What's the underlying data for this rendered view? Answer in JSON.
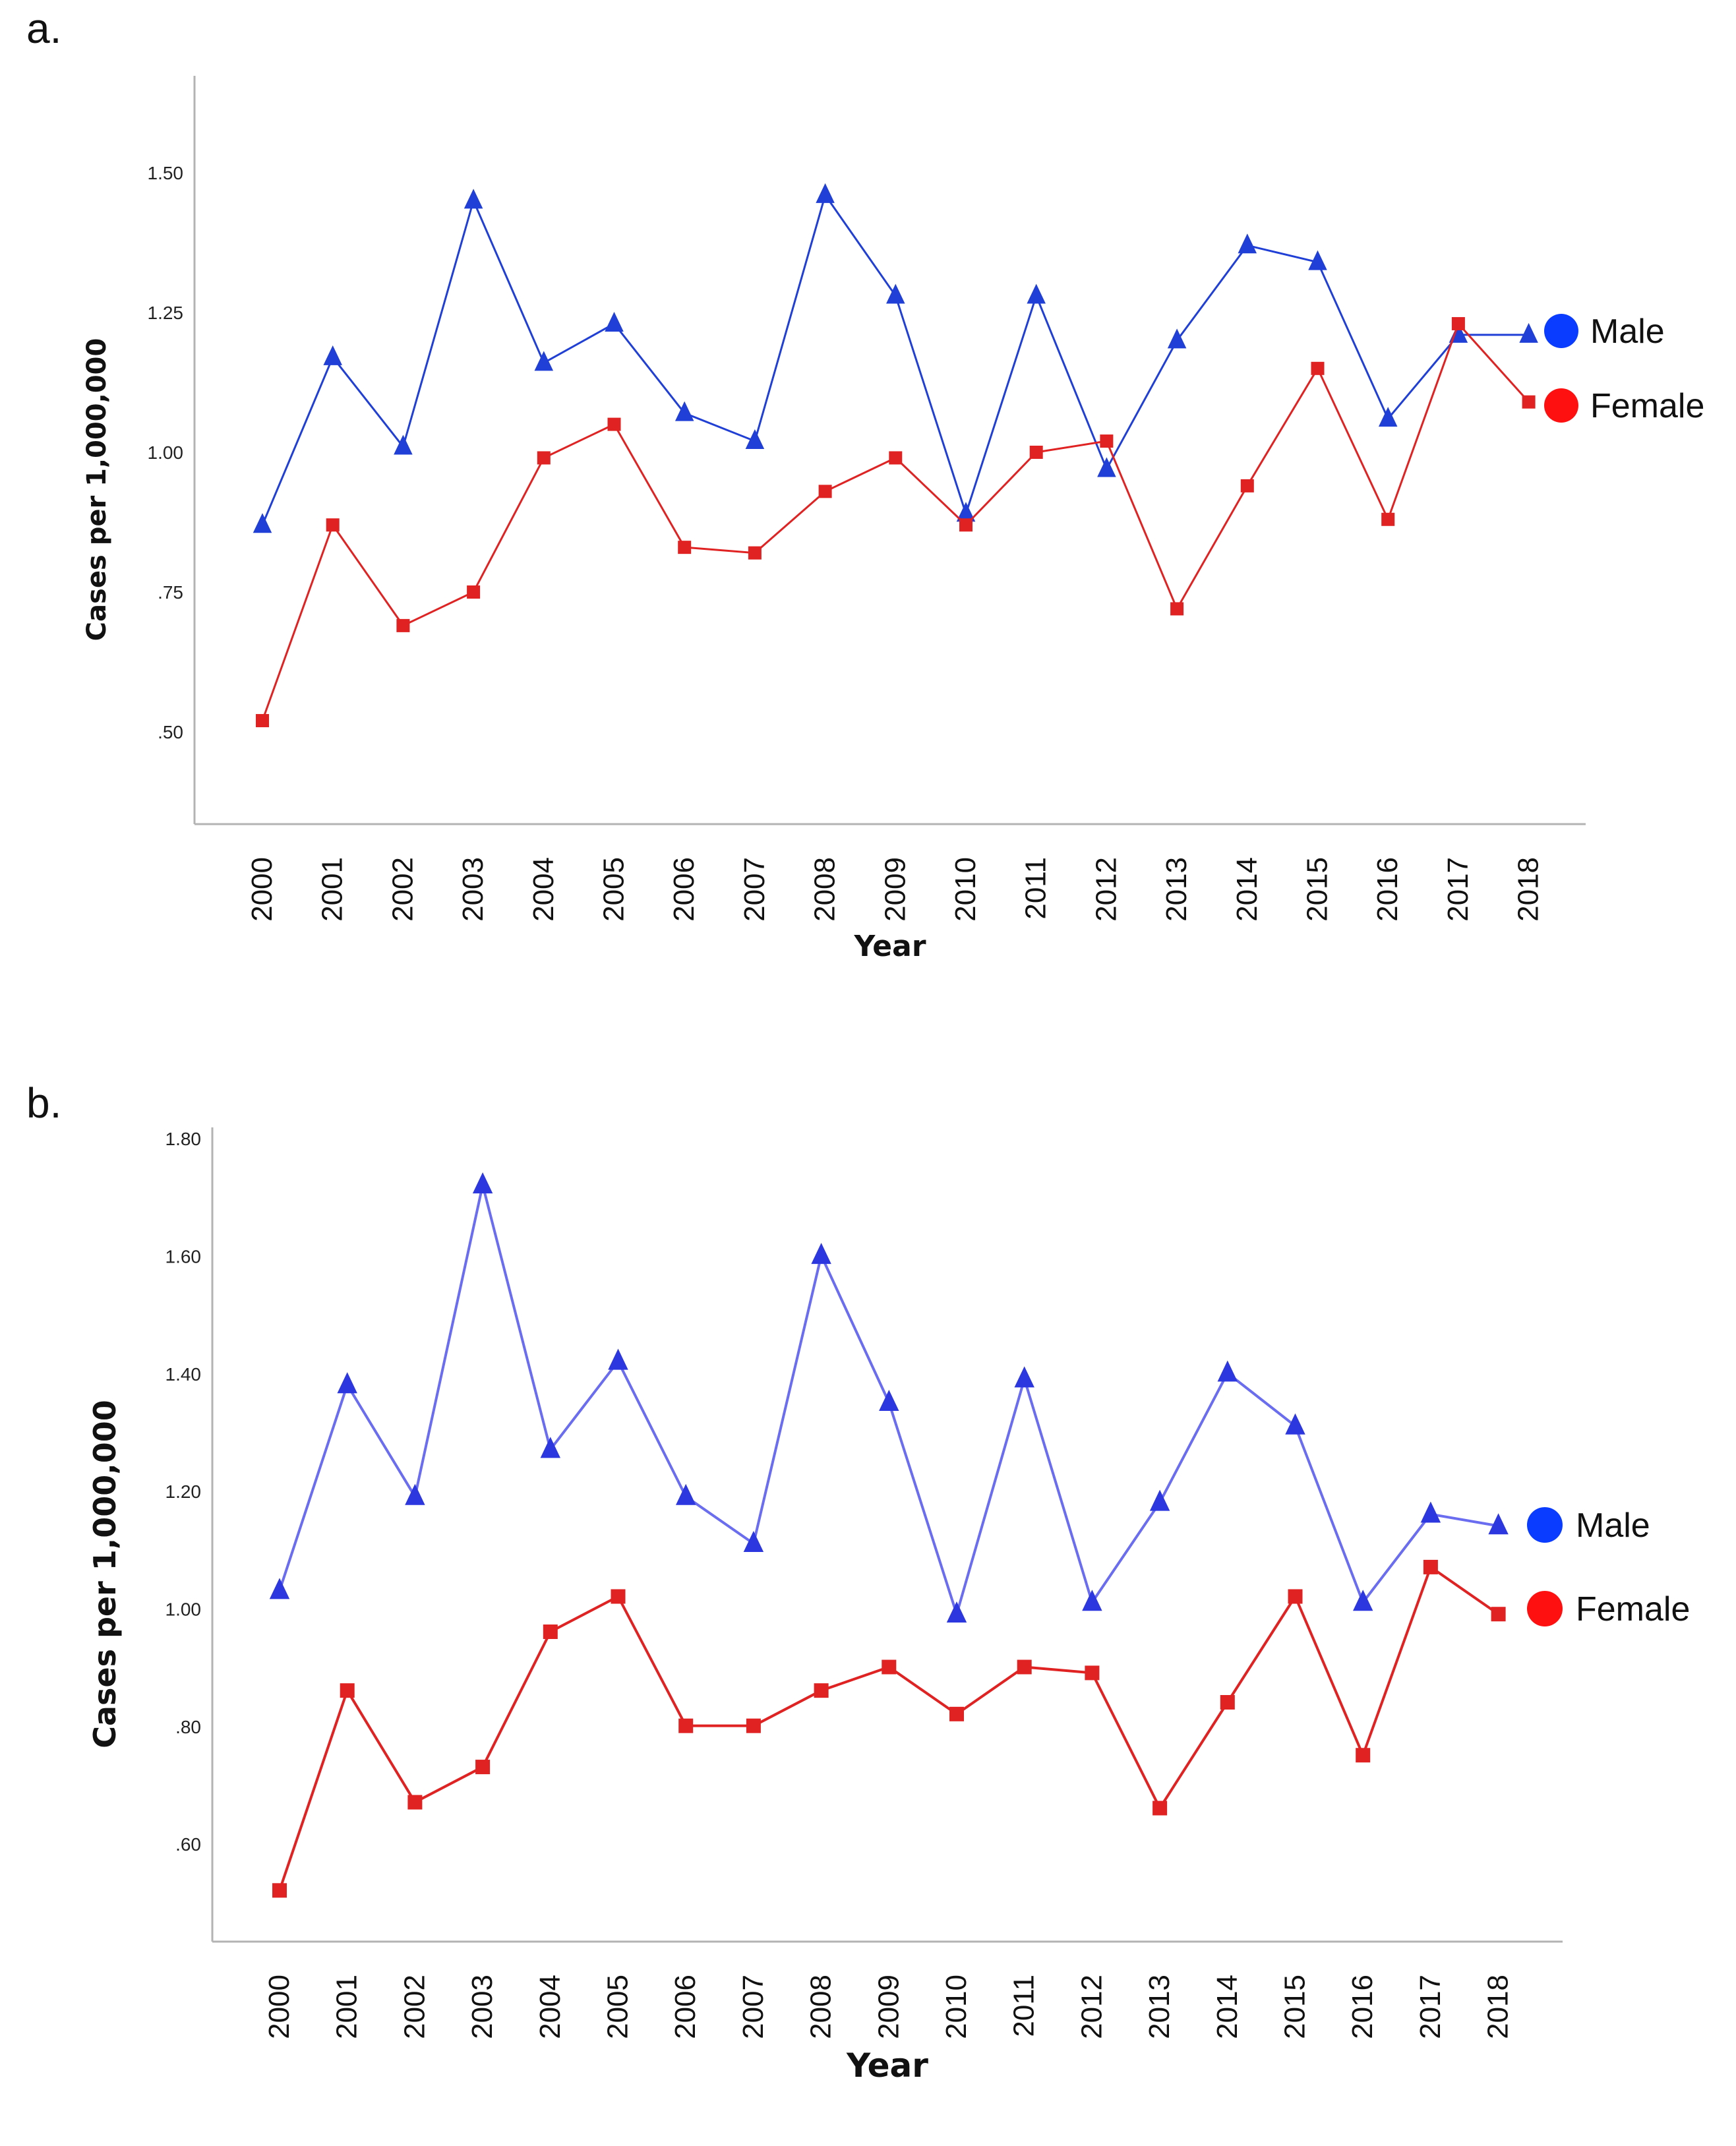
{
  "figure": {
    "panel_a_label": "a.",
    "panel_b_label": "b."
  },
  "colors": {
    "male_a": "#1f3fd6",
    "male_b": "#6b6df0",
    "male_marker_b": "#2c37e0",
    "female": "#e02222",
    "legend_male": "#0a3cff",
    "legend_female": "#ff1010"
  },
  "chart_data": [
    {
      "type": "line",
      "panel": "a",
      "title": "",
      "xlabel": "Year",
      "ylabel": "Cases per 1,000,000",
      "categories": [
        "2000",
        "2001",
        "2002",
        "2003",
        "2004",
        "2005",
        "2006",
        "2007",
        "2008",
        "2009",
        "2010",
        "2011",
        "2012",
        "2013",
        "2014",
        "2015",
        "2016",
        "2017",
        "2018"
      ],
      "yticks": [
        0.5,
        0.75,
        1.0,
        1.25,
        1.5
      ],
      "ytick_labels": [
        ".50",
        ".75",
        "1.00",
        "1.25",
        "1.50"
      ],
      "ylim": [
        0.34,
        1.68
      ],
      "grid": false,
      "legend_position": "right",
      "series": [
        {
          "name": "Male",
          "marker": "triangle",
          "values": [
            0.87,
            1.17,
            1.01,
            1.45,
            1.16,
            1.23,
            1.07,
            1.02,
            1.46,
            1.28,
            0.89,
            1.28,
            0.97,
            1.2,
            1.37,
            1.34,
            1.06,
            1.21,
            1.21
          ]
        },
        {
          "name": "Female",
          "marker": "square",
          "values": [
            0.52,
            0.87,
            0.69,
            0.75,
            0.99,
            1.05,
            0.83,
            0.82,
            0.93,
            0.99,
            0.87,
            1.0,
            1.02,
            0.72,
            0.94,
            1.15,
            0.88,
            1.23,
            1.09
          ]
        }
      ]
    },
    {
      "type": "line",
      "panel": "b",
      "title": "",
      "xlabel": "Year",
      "ylabel": "Cases per 1,000,000",
      "categories": [
        "2000",
        "2001",
        "2002",
        "2003",
        "2004",
        "2005",
        "2006",
        "2007",
        "2008",
        "2009",
        "2010",
        "2011",
        "2012",
        "2013",
        "2014",
        "2015",
        "2016",
        "2017",
        "2018"
      ],
      "yticks": [
        0.6,
        0.8,
        1.0,
        1.2,
        1.4,
        1.6,
        1.8
      ],
      "ytick_labels": [
        ".60",
        ".80",
        "1.00",
        "1.20",
        "1.40",
        "1.60",
        "1.80"
      ],
      "ylim": [
        0.48,
        1.81
      ],
      "grid": false,
      "legend_position": "right",
      "series": [
        {
          "name": "Male",
          "marker": "triangle",
          "values": [
            1.03,
            1.38,
            1.19,
            1.72,
            1.27,
            1.42,
            1.19,
            1.11,
            1.6,
            1.35,
            0.99,
            1.39,
            1.01,
            1.18,
            1.4,
            1.31,
            1.01,
            1.16,
            1.14
          ]
        },
        {
          "name": "Female",
          "marker": "square",
          "values": [
            0.52,
            0.86,
            0.67,
            0.73,
            0.96,
            1.02,
            0.8,
            0.8,
            0.86,
            0.9,
            0.82,
            0.9,
            0.89,
            0.66,
            0.84,
            1.02,
            0.75,
            1.07,
            0.99
          ]
        }
      ]
    }
  ]
}
